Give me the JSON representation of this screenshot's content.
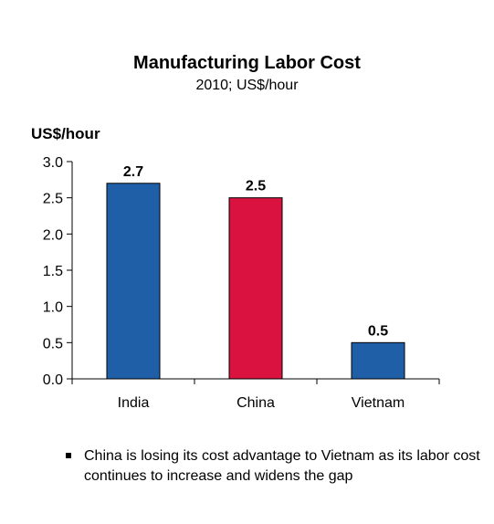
{
  "chart_data": {
    "type": "bar",
    "title": "Manufacturing Labor Cost",
    "subtitle": "2010; US$/hour",
    "ylabel": "US$/hour",
    "xlabel": "",
    "categories": [
      "India",
      "China",
      "Vietnam"
    ],
    "values": [
      2.7,
      2.5,
      0.5
    ],
    "data_labels": [
      "2.7",
      "2.5",
      "0.5"
    ],
    "bar_colors": [
      "#1f5fa8",
      "#d9123f",
      "#1f5fa8"
    ],
    "ylim": [
      0,
      3.0
    ],
    "yticks": [
      "0.0",
      "0.5",
      "1.0",
      "1.5",
      "2.0",
      "2.5",
      "3.0"
    ],
    "grid": false,
    "legend": "none"
  },
  "note": {
    "text": "China is losing its cost advantage to Vietnam as its labor cost continues to increase and widens the gap"
  }
}
